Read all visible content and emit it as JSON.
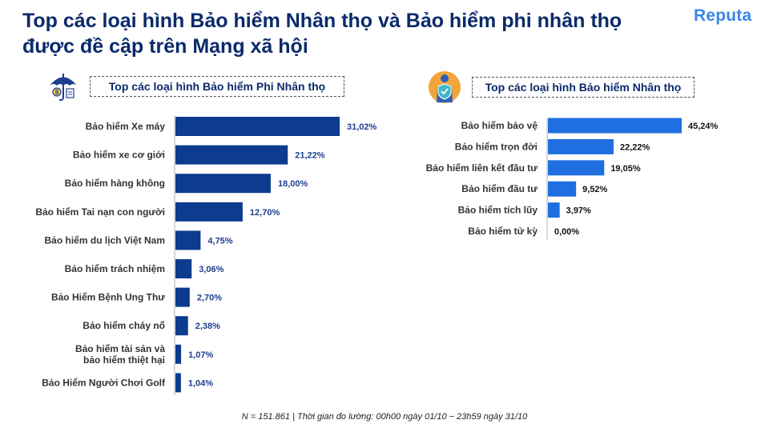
{
  "header": {
    "title_line1": "Top các loại hình Bảo hiểm Nhân thọ và Bảo hiểm phi nhân thọ",
    "title_line2": "được đề cập trên Mạng xã hội",
    "brand": "Reputa"
  },
  "footer": {
    "note": "N = 151.861 | Thời gian đo lường: 00h00 ngày 01/10 − 23h59 ngày 31/10"
  },
  "icons": [
    "umbrella-icon",
    "shield-person-icon"
  ],
  "colors": {
    "left_bar": "#0d3b8e",
    "right_bar": "#1f6fe0",
    "title": "#0b2a6b"
  },
  "chart_data": [
    {
      "type": "bar",
      "orientation": "horizontal",
      "title": "Top các loại hình Bảo hiểm Phi Nhân thọ",
      "categories": [
        [
          "Bảo hiểm  Xe máy"
        ],
        [
          "Bảo hiểm  xe cơ giới"
        ],
        [
          "Bảo hiểm  hàng không"
        ],
        [
          "Bảo hiểm  Tai nạn con người"
        ],
        [
          "Bảo hiểm  du lịch Việt Nam"
        ],
        [
          "Bảo hiểm  trách nhiệm"
        ],
        [
          "Bảo Hiểm  Bệnh Ung Thư"
        ],
        [
          "Bảo hiểm  cháy nổ"
        ],
        [
          "Bảo hiểm  tài sản và",
          "bảo hiểm  thiệt hại"
        ],
        [
          "Bảo Hiểm  Người Chơi Golf"
        ]
      ],
      "values": [
        31.02,
        21.22,
        18.0,
        12.7,
        4.75,
        3.06,
        2.7,
        2.38,
        1.07,
        1.04
      ],
      "labels": [
        "31,02%",
        "21,22%",
        "18,00%",
        "12,70%",
        "4,75%",
        "3,06%",
        "2,70%",
        "2,38%",
        "1,07%",
        "1,04%"
      ],
      "xlim": [
        0,
        31.02
      ]
    },
    {
      "type": "bar",
      "orientation": "horizontal",
      "title": "Top các loại hình Bảo hiểm Nhân thọ",
      "categories": [
        [
          "Bảo hiểm  bảo vệ"
        ],
        [
          "Bảo hiểm  trọn đời"
        ],
        [
          "Bảo hiểm  liên kết đầu tư"
        ],
        [
          "Bảo hiểm  đầu tư"
        ],
        [
          "Bảo hiểm  tích lũy"
        ],
        [
          "Bảo hiểm  tử kỳ"
        ]
      ],
      "values": [
        45.24,
        22.22,
        19.05,
        9.52,
        3.97,
        0.0
      ],
      "labels": [
        "45,24%",
        "22,22%",
        "19,05%",
        "9,52%",
        "3,97%",
        "0,00%"
      ],
      "xlim": [
        0,
        45.24
      ]
    }
  ]
}
